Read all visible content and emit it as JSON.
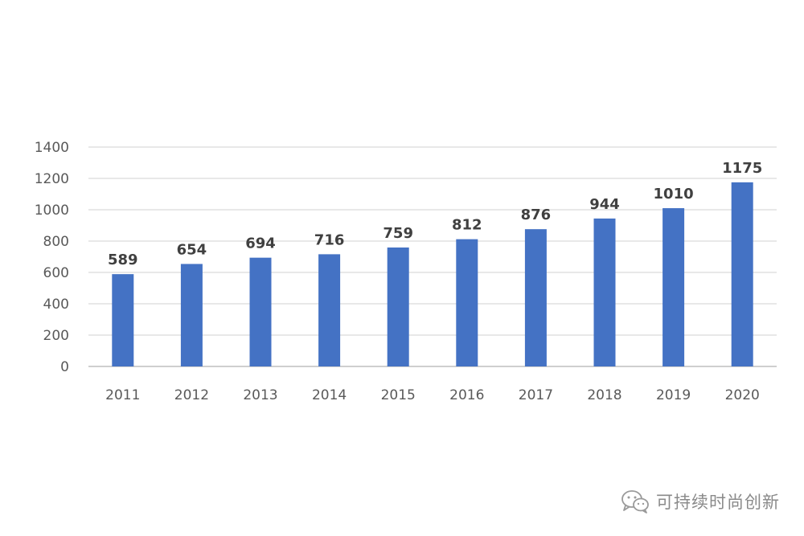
{
  "chart_data": {
    "type": "bar",
    "categories": [
      "2011",
      "2012",
      "2013",
      "2014",
      "2015",
      "2016",
      "2017",
      "2018",
      "2019",
      "2020"
    ],
    "values": [
      589,
      654,
      694,
      716,
      759,
      812,
      876,
      944,
      1010,
      1175
    ],
    "title": "",
    "xlabel": "",
    "ylabel": "",
    "ylim": [
      0,
      1400
    ],
    "yticks": [
      0,
      200,
      400,
      600,
      800,
      1000,
      1200,
      1400
    ],
    "grid": true,
    "legend": "none",
    "bar_color": "#4472c4",
    "data_labels": true
  },
  "watermark": {
    "text": "可持续时尚创新",
    "icon": "wechat-icon"
  }
}
